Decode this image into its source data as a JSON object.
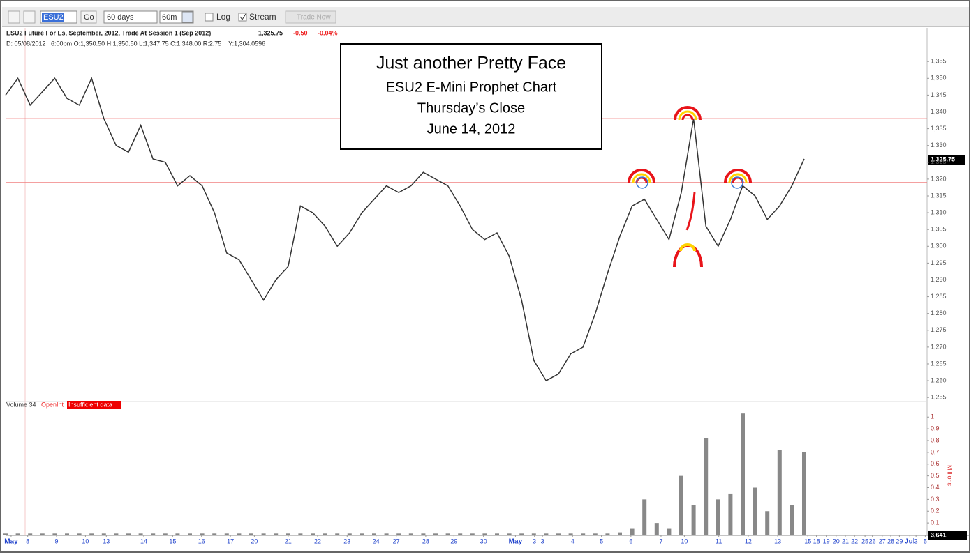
{
  "toolbar": {
    "symbol": "ESU2",
    "go": "Go",
    "range": "60 days",
    "interval": "60m",
    "log": "Log",
    "stream": "Stream",
    "trade": "Trade Now"
  },
  "header": {
    "title": "ESU2 Future For Es, September, 2012, Trade At Session 1 (Sep 2012)",
    "last": "1,325.75",
    "change": "-0.50",
    "change_pct": "-0.04%",
    "details": "D: 05/08/2012   6:00pm O:1,350.50 H:1,350.50 L:1,347.75 C:1,348.00 R:2.75    Y:1,304.0596"
  },
  "annotation": {
    "line1": "Just another Pretty Face",
    "line2": "ESU2 E-Mini Prophet Chart",
    "line3": "Thursday’s Close",
    "line4": "June 14, 2012"
  },
  "volume_panel": {
    "label": "Volume 34",
    "openint": "OpenInt",
    "warning": "Insufficient data",
    "axis_label": "Millions",
    "last": "3,641"
  },
  "chart_data": {
    "type": "line",
    "last_price_label": "1,325.75",
    "x": [
      0,
      2,
      4,
      6,
      8,
      10,
      12,
      14,
      16,
      18,
      20,
      22,
      24,
      26,
      28,
      30,
      32,
      34,
      36,
      38,
      40,
      42,
      44,
      46,
      48,
      50,
      52,
      54,
      56,
      58,
      60,
      62,
      64,
      66,
      68,
      70,
      72,
      74,
      76,
      78,
      80,
      82,
      84,
      86,
      88,
      90,
      92,
      94,
      96,
      98,
      100,
      102,
      104,
      106,
      108,
      110,
      112,
      114,
      116,
      118,
      120,
      122,
      124,
      126,
      128,
      130
    ],
    "xlim": [
      0,
      150
    ],
    "xticks": [
      {
        "value": 0.9,
        "label": "May"
      },
      {
        "value": 3.6,
        "label": "8"
      },
      {
        "value": 8.3,
        "label": "9"
      },
      {
        "value": 13,
        "label": "10"
      },
      {
        "value": 16.4,
        "label": "13"
      },
      {
        "value": 22.5,
        "label": "14"
      },
      {
        "value": 27.2,
        "label": "15"
      },
      {
        "value": 31.9,
        "label": "16"
      },
      {
        "value": 36.6,
        "label": "17"
      },
      {
        "value": 40.5,
        "label": "20"
      },
      {
        "value": 46,
        "label": "21"
      },
      {
        "value": 50.8,
        "label": "22"
      },
      {
        "value": 55.6,
        "label": "23"
      },
      {
        "value": 60.3,
        "label": "24"
      },
      {
        "value": 63.6,
        "label": "27"
      },
      {
        "value": 68.4,
        "label": "28"
      },
      {
        "value": 73,
        "label": "29"
      },
      {
        "value": 77.8,
        "label": "30"
      },
      {
        "value": 83,
        "label": "May"
      },
      {
        "value": 86.1,
        "label": "3"
      },
      {
        "value": 87.4,
        "label": "3"
      },
      {
        "value": 92.3,
        "label": "4"
      },
      {
        "value": 97,
        "label": "5"
      },
      {
        "value": 101.8,
        "label": "6"
      },
      {
        "value": 106.7,
        "label": "7"
      },
      {
        "value": 110.5,
        "label": "10"
      },
      {
        "value": 116.1,
        "label": "11"
      },
      {
        "value": 120.9,
        "label": "12"
      },
      {
        "value": 125.7,
        "label": "13"
      },
      {
        "value": 130.6,
        "label": "15"
      },
      {
        "value": 132,
        "label": "18"
      },
      {
        "value": 133.6,
        "label": "19"
      },
      {
        "value": 135.2,
        "label": "20"
      },
      {
        "value": 136.7,
        "label": "21"
      },
      {
        "value": 138.2,
        "label": "22"
      },
      {
        "value": 139.9,
        "label": "25"
      },
      {
        "value": 141.1,
        "label": "26"
      },
      {
        "value": 142.7,
        "label": "27"
      },
      {
        "value": 144.1,
        "label": "28"
      },
      {
        "value": 145.5,
        "label": "29"
      },
      {
        "value": 147.2,
        "label": "Jul"
      },
      {
        "value": 148.2,
        "label": "3"
      },
      {
        "value": 149.7,
        "label": "5"
      }
    ],
    "ylim": [
      1254,
      1365
    ],
    "yticks": [
      {
        "value": 1255,
        "label": "1,255"
      },
      {
        "value": 1260,
        "label": "1,260"
      },
      {
        "value": 1265,
        "label": "1,265"
      },
      {
        "value": 1270,
        "label": "1,270"
      },
      {
        "value": 1275,
        "label": "1,275"
      },
      {
        "value": 1280,
        "label": "1,280"
      },
      {
        "value": 1285,
        "label": "1,285"
      },
      {
        "value": 1290,
        "label": "1,290"
      },
      {
        "value": 1295,
        "label": "1,295"
      },
      {
        "value": 1300,
        "label": "1,300"
      },
      {
        "value": 1305,
        "label": "1,305"
      },
      {
        "value": 1310,
        "label": "1,310"
      },
      {
        "value": 1315,
        "label": "1,315"
      },
      {
        "value": 1320,
        "label": "1,320"
      },
      {
        "value": 1325,
        "label": "1,325"
      },
      {
        "value": 1330,
        "label": "1,330"
      },
      {
        "value": 1335,
        "label": "1,335"
      },
      {
        "value": 1340,
        "label": "1,340"
      },
      {
        "value": 1345,
        "label": "1,345"
      },
      {
        "value": 1350,
        "label": "1,350"
      },
      {
        "value": 1355,
        "label": "1,355"
      }
    ],
    "hlines": [
      1338,
      1319,
      1301
    ],
    "series": [
      {
        "name": "ESU2",
        "color": "#333333",
        "values": [
          1345,
          1350,
          1342,
          1346,
          1350,
          1344,
          1342,
          1350,
          1338,
          1330,
          1328,
          1336,
          1326,
          1325,
          1318,
          1321,
          1318,
          1310,
          1298,
          1296,
          1290,
          1284,
          1290,
          1294,
          1312,
          1310,
          1306,
          1300,
          1304,
          1310,
          1314,
          1318,
          1316,
          1318,
          1322,
          1320,
          1318,
          1312,
          1305,
          1302,
          1304,
          1297,
          1284,
          1266,
          1260,
          1262,
          1268,
          1270,
          1280,
          1292,
          1303,
          1312,
          1314,
          1308,
          1302,
          1316,
          1338,
          1306,
          1300,
          1308,
          1318,
          1315,
          1308,
          1312,
          1318,
          1326
        ]
      },
      {
        "name": "Volume",
        "color": "#888888",
        "axis": "y2",
        "values": [
          0.01,
          0.01,
          0.01,
          0.01,
          0.01,
          0.01,
          0.01,
          0.01,
          0.01,
          0.01,
          0.01,
          0.01,
          0.01,
          0.01,
          0.01,
          0.01,
          0.01,
          0.01,
          0.01,
          0.01,
          0.01,
          0.01,
          0.01,
          0.01,
          0.01,
          0.01,
          0.01,
          0.01,
          0.01,
          0.01,
          0.01,
          0.01,
          0.01,
          0.01,
          0.01,
          0.01,
          0.01,
          0.01,
          0.01,
          0.01,
          0.01,
          0.01,
          0.01,
          0.01,
          0.01,
          0.01,
          0.01,
          0.01,
          0.01,
          0.01,
          0.02,
          0.05,
          0.3,
          0.1,
          0.05,
          0.5,
          0.25,
          0.82,
          0.3,
          0.35,
          1.03,
          0.4,
          0.2,
          0.72,
          0.25,
          0.7
        ]
      }
    ],
    "y2lim": [
      0,
      1.12
    ],
    "y2ticks": [
      0.1,
      0.2,
      0.3,
      0.4,
      0.5,
      0.6,
      0.7,
      0.8,
      0.9,
      1
    ]
  }
}
